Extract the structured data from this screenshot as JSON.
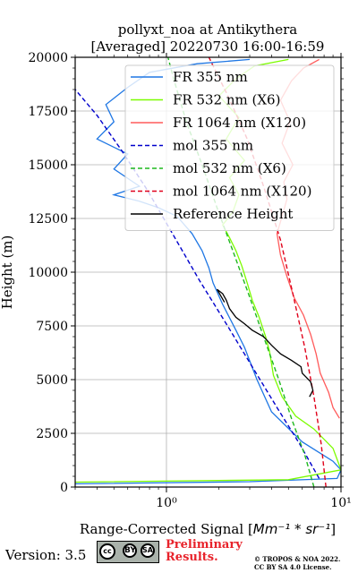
{
  "chart_data": {
    "type": "line",
    "title_line1": "pollyxt_noa at Antikythera",
    "title_line2": "[Averaged] 20220730 16:00-16:59",
    "xlabel": "Range-Corrected Signal [",
    "xlabel_math": "Mm⁻¹ * sr⁻¹",
    "xlabel_close": "]",
    "ylabel": "Height (m)",
    "x_scale": "log",
    "xlim": [
      0.3,
      10
    ],
    "ylim": [
      0,
      20000
    ],
    "x_ticks": [
      {
        "value": 1,
        "label": "10⁰"
      },
      {
        "value": 10,
        "label": "10¹"
      }
    ],
    "y_ticks": [
      0,
      2500,
      5000,
      7500,
      10000,
      12500,
      15000,
      17500,
      20000
    ],
    "grid": true,
    "legend_position": "top-right",
    "series": [
      {
        "name": "FR 355 nm",
        "color": "#1f77e4",
        "style": "solid",
        "points": [
          [
            0.3,
            150
          ],
          [
            3,
            250
          ],
          [
            9.5,
            400
          ],
          [
            10,
            800
          ],
          [
            9,
            1200
          ],
          [
            6,
            2100
          ],
          [
            4,
            3500
          ],
          [
            3.3,
            5000
          ],
          [
            2.8,
            6500
          ],
          [
            2.5,
            7300
          ],
          [
            2.1,
            8500
          ],
          [
            1.85,
            9500
          ],
          [
            1.75,
            10200
          ],
          [
            1.6,
            11000
          ],
          [
            1.4,
            11800
          ],
          [
            1.15,
            12600
          ],
          [
            0.9,
            13000
          ],
          [
            0.7,
            13300
          ],
          [
            0.5,
            13600
          ],
          [
            0.7,
            14000
          ],
          [
            0.5,
            14800
          ],
          [
            0.6,
            15500
          ],
          [
            0.4,
            16200
          ],
          [
            0.5,
            17000
          ],
          [
            0.45,
            17800
          ],
          [
            0.6,
            18600
          ],
          [
            0.8,
            19300
          ],
          [
            1.5,
            19700
          ],
          [
            3,
            19900
          ]
        ]
      },
      {
        "name": "FR 532 nm (X6)",
        "color": "#7cfc00",
        "style": "solid",
        "points": [
          [
            0.3,
            230
          ],
          [
            5,
            340
          ],
          [
            10,
            800
          ],
          [
            9,
            1800
          ],
          [
            7,
            2700
          ],
          [
            5.5,
            3300
          ],
          [
            4.6,
            4200
          ],
          [
            4.1,
            5200
          ],
          [
            3.9,
            6300
          ],
          [
            3.7,
            7000
          ],
          [
            3.4,
            7900
          ],
          [
            3.1,
            8700
          ],
          [
            2.9,
            9500
          ],
          [
            2.7,
            10300
          ],
          [
            2.5,
            11000
          ],
          [
            2.3,
            11600
          ],
          [
            2.1,
            12200
          ],
          [
            2.4,
            12800
          ],
          [
            2.6,
            13600
          ],
          [
            2.3,
            14400
          ],
          [
            2.8,
            15200
          ],
          [
            2.2,
            16200
          ],
          [
            2.6,
            17200
          ],
          [
            2.0,
            18200
          ],
          [
            2.5,
            19000
          ],
          [
            3.2,
            19600
          ],
          [
            5,
            19900
          ]
        ]
      },
      {
        "name": "FR 1064 nm (X120)",
        "color": "#ff5b5b",
        "style": "solid",
        "points": [
          [
            9.8,
            3200
          ],
          [
            9,
            3700
          ],
          [
            8.5,
            4400
          ],
          [
            7.6,
            5300
          ],
          [
            7.2,
            6200
          ],
          [
            6.7,
            7100
          ],
          [
            6.1,
            8000
          ],
          [
            5.4,
            8800
          ],
          [
            4.9,
            9800
          ],
          [
            4.5,
            10800
          ],
          [
            4.3,
            11800
          ],
          [
            4.6,
            12600
          ],
          [
            4.9,
            13400
          ],
          [
            4.7,
            14200
          ],
          [
            5.3,
            15000
          ],
          [
            4.6,
            16000
          ],
          [
            5.1,
            17000
          ],
          [
            4.5,
            18000
          ],
          [
            5.2,
            18900
          ],
          [
            6.1,
            19500
          ],
          [
            7.5,
            19900
          ]
        ]
      },
      {
        "name": "mol 355 nm",
        "color": "#0000cc",
        "style": "dashed",
        "points": [
          [
            7.5,
            400
          ],
          [
            5.8,
            2000
          ],
          [
            4.3,
            3700
          ],
          [
            3.1,
            5600
          ],
          [
            2.2,
            7600
          ],
          [
            1.55,
            9600
          ],
          [
            1.1,
            11700
          ],
          [
            0.78,
            13800
          ],
          [
            0.55,
            15700
          ],
          [
            0.4,
            17300
          ],
          [
            0.3,
            18500
          ]
        ]
      },
      {
        "name": "mol 532 nm (X6)",
        "color": "#1fb81f",
        "style": "dashed",
        "points": [
          [
            7.0,
            0
          ],
          [
            6.2,
            1500
          ],
          [
            5.2,
            3200
          ],
          [
            4.4,
            5000
          ],
          [
            3.6,
            7000
          ],
          [
            2.95,
            9000
          ],
          [
            2.4,
            11000
          ],
          [
            1.95,
            13000
          ],
          [
            1.6,
            15000
          ],
          [
            1.3,
            17000
          ],
          [
            1.1,
            19000
          ],
          [
            1.02,
            20000
          ]
        ]
      },
      {
        "name": "mol 1064 nm (X120)",
        "color": "#e0001b",
        "style": "dashed",
        "points": [
          [
            8.2,
            0
          ],
          [
            7.7,
            2000
          ],
          [
            7.0,
            4200
          ],
          [
            6.2,
            6500
          ],
          [
            5.3,
            9000
          ],
          [
            4.5,
            11500
          ],
          [
            3.6,
            14000
          ],
          [
            2.9,
            16200
          ],
          [
            2.25,
            18200
          ],
          [
            1.75,
            20000
          ]
        ]
      },
      {
        "name": "Reference Height",
        "color": "#000000",
        "style": "solid",
        "points": [
          [
            6.6,
            4200
          ],
          [
            6.9,
            4500
          ],
          [
            6.7,
            4900
          ],
          [
            6.0,
            5300
          ],
          [
            5.9,
            5600
          ],
          [
            5.2,
            5900
          ],
          [
            4.5,
            6200
          ],
          [
            4.0,
            6600
          ],
          [
            3.6,
            7000
          ],
          [
            3.1,
            7300
          ],
          [
            2.8,
            7600
          ],
          [
            2.5,
            7900
          ],
          [
            2.3,
            8300
          ],
          [
            2.2,
            8700
          ],
          [
            2.1,
            9000
          ],
          [
            1.95,
            9200
          ],
          [
            2.15,
            8600
          ]
        ]
      }
    ]
  },
  "footer": {
    "version": "Version: 3.5",
    "license_badge": {
      "cc": "cc",
      "by": "BY",
      "sa": "SA"
    },
    "prelim_line1": "Preliminary",
    "prelim_line2": "Results.",
    "copyright_line1": "© TROPOS & NOA 2022.",
    "copyright_line2": "CC BY SA 4.0 License."
  }
}
